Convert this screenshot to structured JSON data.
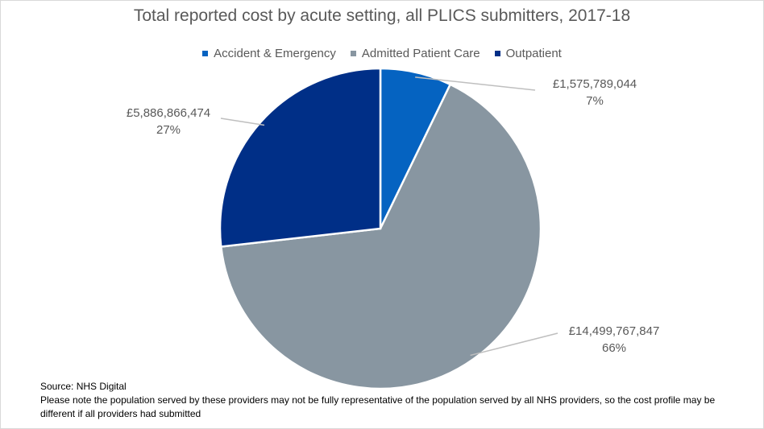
{
  "chart_data": {
    "type": "pie",
    "title": "Total reported cost by acute setting, all PLICS submitters, 2017-18",
    "categories": [
      "Accident & Emergency",
      "Admitted Patient Care",
      "Outpatient"
    ],
    "values": [
      1575789044,
      14499767847,
      5886866474
    ],
    "value_labels": [
      "£1,575,789,044",
      "£14,499,767,847",
      "£5,886,866,474"
    ],
    "percent_labels": [
      "7%",
      "66%",
      "27%"
    ],
    "colors": [
      "#0563c1",
      "#8896a1",
      "#002f87"
    ],
    "legend_position": "top"
  },
  "footnote": {
    "source": "Source: NHS Digital",
    "note": "Please note the population served by these providers may not be fully representative of the population served by all NHS providers, so the cost profile may be different if all providers had submitted"
  }
}
